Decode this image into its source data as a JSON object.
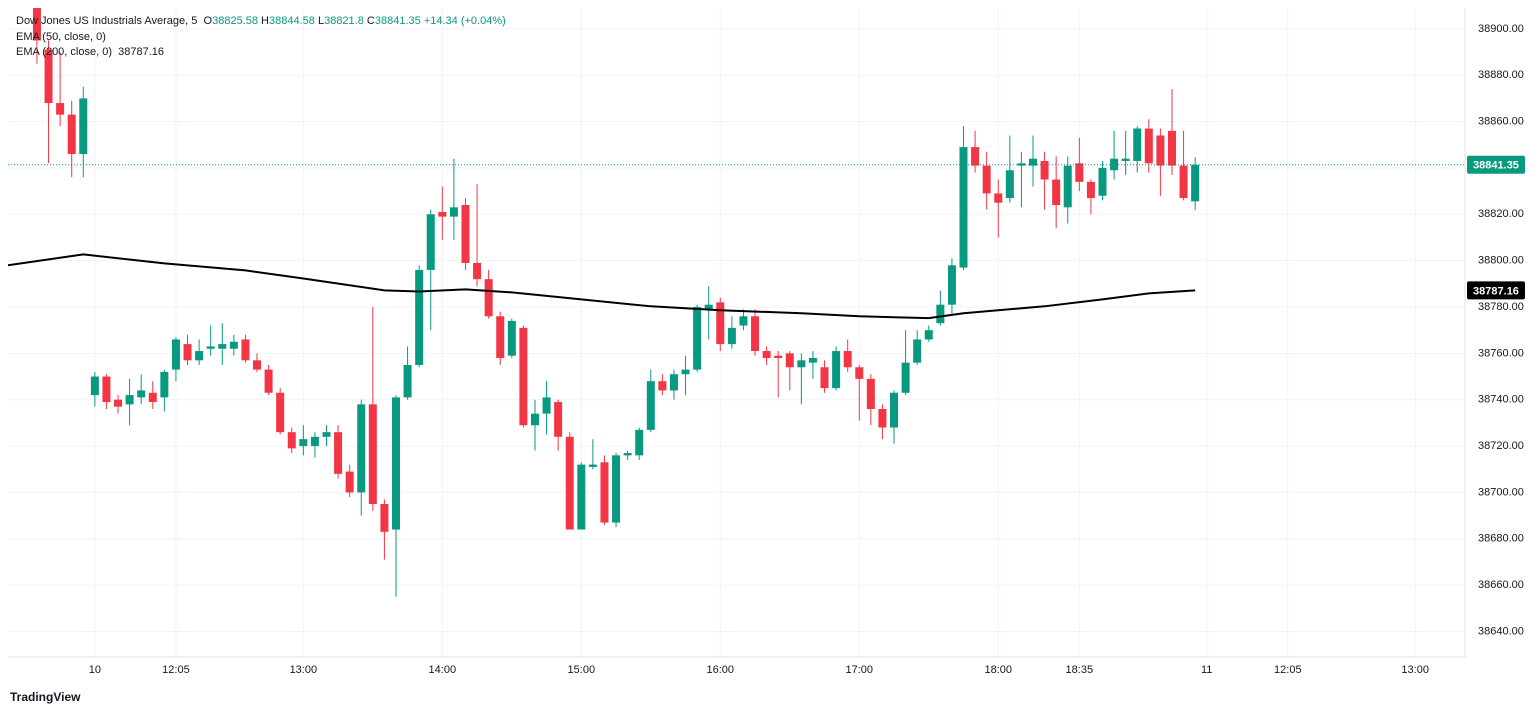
{
  "chart_data": {
    "type": "candlestick",
    "title": "Dow Jones US Industrials Average, 5",
    "ohlc_labels": [
      "O",
      "H",
      "L",
      "C"
    ],
    "change": "+14.34 (+0.04%)",
    "up_color": "#089981",
    "down_color": "#f23645",
    "brand": "TradingView",
    "candles": [
      {
        "o": 38915,
        "h": 38920,
        "l": 38885,
        "c": 38895
      },
      {
        "o": 38891,
        "h": 38895,
        "l": 38842,
        "c": 38868
      },
      {
        "o": 38868,
        "h": 38890,
        "l": 38858,
        "c": 38863
      },
      {
        "o": 38863,
        "h": 38869,
        "l": 38836,
        "c": 38846
      },
      {
        "o": 38846,
        "h": 38875,
        "l": 38836,
        "c": 38870
      },
      {
        "o": 38742,
        "h": 38752,
        "l": 38737,
        "c": 38750
      },
      {
        "o": 38750,
        "h": 38751,
        "l": 38736,
        "c": 38739
      },
      {
        "o": 38740,
        "h": 38742,
        "l": 38734,
        "c": 38737
      },
      {
        "o": 38738,
        "h": 38749,
        "l": 38729,
        "c": 38742
      },
      {
        "o": 38741,
        "h": 38751,
        "l": 38738,
        "c": 38744
      },
      {
        "o": 38743,
        "h": 38748,
        "l": 38736,
        "c": 38739
      },
      {
        "o": 38741,
        "h": 38753,
        "l": 38735,
        "c": 38752
      },
      {
        "o": 38753,
        "h": 38767,
        "l": 38748,
        "c": 38766
      },
      {
        "o": 38764,
        "h": 38768,
        "l": 38755,
        "c": 38757
      },
      {
        "o": 38757,
        "h": 38766,
        "l": 38755,
        "c": 38761
      },
      {
        "o": 38762,
        "h": 38772,
        "l": 38759,
        "c": 38763
      },
      {
        "o": 38762,
        "h": 38773,
        "l": 38755,
        "c": 38764
      },
      {
        "o": 38762,
        "h": 38768,
        "l": 38759,
        "c": 38765
      },
      {
        "o": 38766,
        "h": 38768,
        "l": 38756,
        "c": 38757
      },
      {
        "o": 38757,
        "h": 38760,
        "l": 38752,
        "c": 38753
      },
      {
        "o": 38753,
        "h": 38755,
        "l": 38742,
        "c": 38743
      },
      {
        "o": 38743,
        "h": 38745,
        "l": 38725,
        "c": 38726
      },
      {
        "o": 38726,
        "h": 38728,
        "l": 38717,
        "c": 38719
      },
      {
        "o": 38720,
        "h": 38729,
        "l": 38716,
        "c": 38723
      },
      {
        "o": 38720,
        "h": 38726,
        "l": 38715,
        "c": 38724
      },
      {
        "o": 38724,
        "h": 38729,
        "l": 38720,
        "c": 38726
      },
      {
        "o": 38726,
        "h": 38729,
        "l": 38706,
        "c": 38708
      },
      {
        "o": 38709,
        "h": 38712,
        "l": 38698,
        "c": 38700
      },
      {
        "o": 38700,
        "h": 38740,
        "l": 38690,
        "c": 38738
      },
      {
        "o": 38738,
        "h": 38780,
        "l": 38692,
        "c": 38695
      },
      {
        "o": 38695,
        "h": 38697,
        "l": 38671,
        "c": 38683
      },
      {
        "o": 38684,
        "h": 38742,
        "l": 38655,
        "c": 38741
      },
      {
        "o": 38741,
        "h": 38763,
        "l": 38740,
        "c": 38755
      },
      {
        "o": 38755,
        "h": 38798,
        "l": 38754,
        "c": 38796
      },
      {
        "o": 38796,
        "h": 38822,
        "l": 38770,
        "c": 38820
      },
      {
        "o": 38821,
        "h": 38832,
        "l": 38809,
        "c": 38819
      },
      {
        "o": 38819,
        "h": 38844,
        "l": 38809,
        "c": 38823
      },
      {
        "o": 38824,
        "h": 38827,
        "l": 38796,
        "c": 38799
      },
      {
        "o": 38799,
        "h": 38833,
        "l": 38789,
        "c": 38792
      },
      {
        "o": 38792,
        "h": 38796,
        "l": 38775,
        "c": 38776
      },
      {
        "o": 38776,
        "h": 38778,
        "l": 38755,
        "c": 38758
      },
      {
        "o": 38759,
        "h": 38775,
        "l": 38758,
        "c": 38774
      },
      {
        "o": 38771,
        "h": 38772,
        "l": 38728,
        "c": 38729
      },
      {
        "o": 38729,
        "h": 38740,
        "l": 38718,
        "c": 38734
      },
      {
        "o": 38734,
        "h": 38748,
        "l": 38725,
        "c": 38741
      },
      {
        "o": 38739,
        "h": 38740,
        "l": 38718,
        "c": 38724
      },
      {
        "o": 38724,
        "h": 38726,
        "l": 38684,
        "c": 38684
      },
      {
        "o": 38684,
        "h": 38713,
        "l": 38684,
        "c": 38712
      },
      {
        "o": 38711,
        "h": 38723,
        "l": 38710,
        "c": 38712
      },
      {
        "o": 38713,
        "h": 38716,
        "l": 38686,
        "c": 38687
      },
      {
        "o": 38687,
        "h": 38717,
        "l": 38685,
        "c": 38716
      },
      {
        "o": 38716,
        "h": 38718,
        "l": 38714,
        "c": 38717
      },
      {
        "o": 38716,
        "h": 38728,
        "l": 38714,
        "c": 38727
      },
      {
        "o": 38727,
        "h": 38753,
        "l": 38726,
        "c": 38748
      },
      {
        "o": 38748,
        "h": 38751,
        "l": 38742,
        "c": 38744
      },
      {
        "o": 38744,
        "h": 38753,
        "l": 38740,
        "c": 38751
      },
      {
        "o": 38751,
        "h": 38759,
        "l": 38742,
        "c": 38753
      },
      {
        "o": 38753,
        "h": 38781,
        "l": 38752,
        "c": 38780
      },
      {
        "o": 38779,
        "h": 38789,
        "l": 38766,
        "c": 38781
      },
      {
        "o": 38782,
        "h": 38784,
        "l": 38761,
        "c": 38764
      },
      {
        "o": 38764,
        "h": 38776,
        "l": 38762,
        "c": 38771
      },
      {
        "o": 38772,
        "h": 38779,
        "l": 38770,
        "c": 38776
      },
      {
        "o": 38776,
        "h": 38779,
        "l": 38759,
        "c": 38761
      },
      {
        "o": 38761,
        "h": 38763,
        "l": 38755,
        "c": 38758
      },
      {
        "o": 38759,
        "h": 38761,
        "l": 38741,
        "c": 38758
      },
      {
        "o": 38760,
        "h": 38761,
        "l": 38744,
        "c": 38754
      },
      {
        "o": 38754,
        "h": 38760,
        "l": 38738,
        "c": 38757
      },
      {
        "o": 38756,
        "h": 38761,
        "l": 38749,
        "c": 38758
      },
      {
        "o": 38754,
        "h": 38757,
        "l": 38743,
        "c": 38745
      },
      {
        "o": 38745,
        "h": 38763,
        "l": 38744,
        "c": 38761
      },
      {
        "o": 38761,
        "h": 38766,
        "l": 38752,
        "c": 38754
      },
      {
        "o": 38754,
        "h": 38755,
        "l": 38731,
        "c": 38749
      },
      {
        "o": 38749,
        "h": 38751,
        "l": 38729,
        "c": 38736
      },
      {
        "o": 38736,
        "h": 38738,
        "l": 38723,
        "c": 38728
      },
      {
        "o": 38728,
        "h": 38744,
        "l": 38721,
        "c": 38743
      },
      {
        "o": 38743,
        "h": 38770,
        "l": 38742,
        "c": 38756
      },
      {
        "o": 38756,
        "h": 38770,
        "l": 38755,
        "c": 38766
      },
      {
        "o": 38766,
        "h": 38772,
        "l": 38765,
        "c": 38770
      },
      {
        "o": 38773,
        "h": 38787,
        "l": 38772,
        "c": 38781
      },
      {
        "o": 38781,
        "h": 38801,
        "l": 38776,
        "c": 38798
      },
      {
        "o": 38797,
        "h": 38858,
        "l": 38796,
        "c": 38849
      },
      {
        "o": 38849,
        "h": 38856,
        "l": 38838,
        "c": 38841
      },
      {
        "o": 38841,
        "h": 38847,
        "l": 38822,
        "c": 38829
      },
      {
        "o": 38829,
        "h": 38835,
        "l": 38810,
        "c": 38825
      },
      {
        "o": 38827,
        "h": 38854,
        "l": 38825,
        "c": 38839
      },
      {
        "o": 38841,
        "h": 38847,
        "l": 38823,
        "c": 38842
      },
      {
        "o": 38841,
        "h": 38854,
        "l": 38832,
        "c": 38844
      },
      {
        "o": 38843,
        "h": 38847,
        "l": 38822,
        "c": 38835
      },
      {
        "o": 38835,
        "h": 38845,
        "l": 38814,
        "c": 38824
      },
      {
        "o": 38823,
        "h": 38845,
        "l": 38816,
        "c": 38841
      },
      {
        "o": 38842,
        "h": 38853,
        "l": 38830,
        "c": 38834
      },
      {
        "o": 38834,
        "h": 38835,
        "l": 38820,
        "c": 38827
      },
      {
        "o": 38828,
        "h": 38843,
        "l": 38826,
        "c": 38840
      },
      {
        "o": 38839,
        "h": 38856,
        "l": 38835,
        "c": 38844
      },
      {
        "o": 38843,
        "h": 38856,
        "l": 38837,
        "c": 38844
      },
      {
        "o": 38843,
        "h": 38858,
        "l": 38838,
        "c": 38857
      },
      {
        "o": 38857,
        "h": 38861,
        "l": 38838,
        "c": 38842
      },
      {
        "o": 38854,
        "h": 38857,
        "l": 38828,
        "c": 38841
      },
      {
        "o": 38856,
        "h": 38874,
        "l": 38837,
        "c": 38841
      },
      {
        "o": 38841,
        "h": 38856,
        "l": 38826,
        "c": 38827
      },
      {
        "o": 38825.58,
        "h": 38844.58,
        "l": 38821.8,
        "c": 38841.35
      }
    ],
    "indicators": [
      {
        "name": "EMA (50, close, 0)"
      },
      {
        "name": "EMA (200, close, 0)",
        "color": "#000000",
        "x": [
          -2.5,
          4,
          11,
          18,
          23,
          30,
          33,
          37,
          41,
          47,
          53,
          59,
          66,
          71,
          77,
          80,
          87,
          92,
          96,
          100
        ],
        "values": [
          38798.0,
          38802.7,
          38798.8,
          38795.8,
          38792.3,
          38787.2,
          38786.7,
          38787.6,
          38786.3,
          38783.3,
          38780.3,
          38778.6,
          38777.3,
          38776.0,
          38775.2,
          38777.3,
          38780.3,
          38783.3,
          38785.9,
          38787.16
        ]
      }
    ],
    "xlim": [
      -2.5,
      123.3
    ],
    "ylim": [
      38629,
      38909
    ],
    "xticks": [
      {
        "value": 5,
        "label": "10"
      },
      {
        "value": 12,
        "label": "12:05"
      },
      {
        "value": 23,
        "label": "13:00"
      },
      {
        "value": 35,
        "label": "14:00"
      },
      {
        "value": 47,
        "label": "15:00"
      },
      {
        "value": 59,
        "label": "16:00"
      },
      {
        "value": 71,
        "label": "17:00"
      },
      {
        "value": 83,
        "label": "18:00"
      },
      {
        "value": 90,
        "label": "18:35"
      },
      {
        "value": 101,
        "label": "11"
      },
      {
        "value": 108,
        "label": "12:05"
      },
      {
        "value": 119,
        "label": "13:00"
      }
    ],
    "yticks": [
      {
        "value": 38640,
        "label": "38640.00"
      },
      {
        "value": 38660,
        "label": "38660.00"
      },
      {
        "value": 38680,
        "label": "38680.00"
      },
      {
        "value": 38700,
        "label": "38700.00"
      },
      {
        "value": 38720,
        "label": "38720.00"
      },
      {
        "value": 38740,
        "label": "38740.00"
      },
      {
        "value": 38760,
        "label": "38760.00"
      },
      {
        "value": 38780,
        "label": "38780.00"
      },
      {
        "value": 38800,
        "label": "38800.00"
      },
      {
        "value": 38820,
        "label": "38820.00"
      },
      {
        "value": 38840,
        "label": "38840.00"
      },
      {
        "value": 38860,
        "label": "38860.00"
      },
      {
        "value": 38880,
        "label": "38880.00"
      },
      {
        "value": 38900,
        "label": "38900.00"
      }
    ],
    "grid": true
  }
}
